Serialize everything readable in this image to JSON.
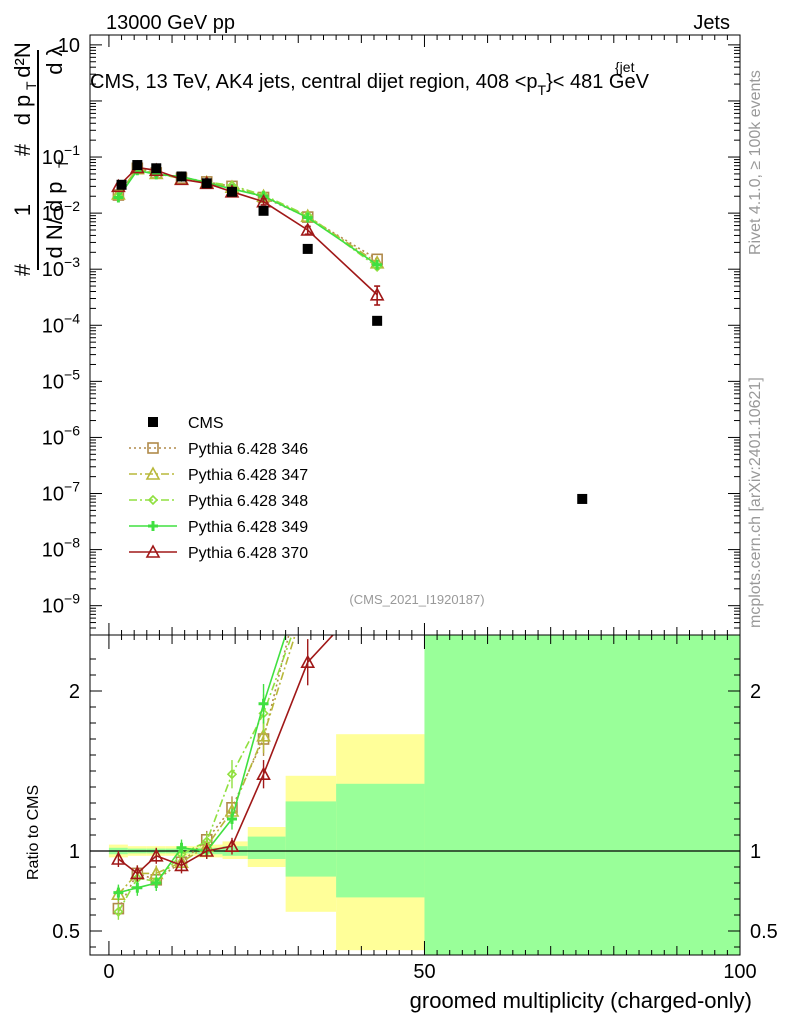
{
  "header": {
    "left": "13000 GeV pp",
    "right": "Jets",
    "title": "CMS, 13 TeV, AK4 jets, central dijet region, 408 <p",
    "title_sup": "{jet",
    "title_sub": "T",
    "title_tail": "}< 481 GeV",
    "watermark": "(CMS_2021_I1920187)",
    "side_top": "Rivet 4.1.0, ≥ 100k events",
    "side_bottom": "mcplots.cern.ch [arXiv:2401.10621]"
  },
  "chart_data": [
    {
      "type": "scatter",
      "panel": "main",
      "xlabel": "groomed multiplicity (charged-only)",
      "ylabel": "1/N dN/dp_T dN/dp_T dλ",
      "xlim": [
        -3,
        100
      ],
      "ylim": [
        3e-10,
        15
      ],
      "yscale": "log",
      "y_ticks": [
        1e-09,
        1e-08,
        1e-07,
        1e-06,
        1e-05,
        0.0001,
        0.001,
        0.01,
        0.1,
        10
      ],
      "y_tick_labels": [
        {
          "base": "10",
          "exp": "−9"
        },
        {
          "base": "10",
          "exp": "−8"
        },
        {
          "base": "10",
          "exp": "−7"
        },
        {
          "base": "10",
          "exp": "−6"
        },
        {
          "base": "10",
          "exp": "−5"
        },
        {
          "base": "10",
          "exp": "−4"
        },
        {
          "base": "10",
          "exp": "−3"
        },
        {
          "base": "10",
          "exp": "−2"
        },
        {
          "base": "10",
          "exp": "−1"
        },
        {
          "base": "10",
          "exp": ""
        }
      ],
      "legend_position": "middle-left",
      "series": [
        {
          "name": "CMS",
          "color": "#000000",
          "marker": "square-filled",
          "line": "none",
          "x": [
            2,
            4.5,
            7.5,
            11.5,
            15.5,
            19.5,
            24.5,
            31.5,
            42.5,
            75
          ],
          "y": [
            0.032,
            0.072,
            0.063,
            0.045,
            0.034,
            0.024,
            0.011,
            0.0023,
            0.00012,
            8e-08
          ]
        },
        {
          "name": "Pythia 6.428 346",
          "color": "#b08a4a",
          "marker": "square-open",
          "line": "dotted",
          "x": [
            1.5,
            4.5,
            7.5,
            11.5,
            15.5,
            19.5,
            24.5,
            31.5,
            42.5
          ],
          "y": [
            0.021,
            0.063,
            0.052,
            0.042,
            0.036,
            0.03,
            0.019,
            0.0085,
            0.0015
          ]
        },
        {
          "name": "Pythia 6.428 347",
          "color": "#b8b83a",
          "marker": "triangle-open",
          "line": "dashdot",
          "x": [
            1.5,
            4.5,
            7.5,
            11.5,
            15.5,
            19.5,
            24.5,
            31.5,
            42.5
          ],
          "y": [
            0.022,
            0.062,
            0.051,
            0.041,
            0.035,
            0.029,
            0.02,
            0.0088,
            0.0013
          ]
        },
        {
          "name": "Pythia 6.428 348",
          "color": "#90e040",
          "marker": "diamond-open",
          "line": "dashdot",
          "x": [
            1.5,
            4.5,
            7.5,
            11.5,
            15.5,
            19.5,
            24.5,
            31.5,
            42.5
          ],
          "y": [
            0.02,
            0.06,
            0.05,
            0.044,
            0.036,
            0.031,
            0.021,
            0.009,
            0.0011
          ]
        },
        {
          "name": "Pythia 6.428 349",
          "color": "#40e040",
          "marker": "plus",
          "line": "solid",
          "x": [
            1.5,
            4.5,
            7.5,
            11.5,
            15.5,
            19.5,
            24.5,
            31.5,
            42.5
          ],
          "y": [
            0.019,
            0.058,
            0.049,
            0.045,
            0.035,
            0.027,
            0.02,
            0.0083,
            0.0012
          ]
        },
        {
          "name": "Pythia 6.428 370",
          "color": "#a01818",
          "marker": "triangle-open",
          "line": "solid",
          "x": [
            1.5,
            4.5,
            7.5,
            11.5,
            15.5,
            19.5,
            24.5,
            31.5,
            42.5
          ],
          "y": [
            0.03,
            0.065,
            0.058,
            0.04,
            0.034,
            0.024,
            0.016,
            0.005,
            0.00035
          ],
          "yerr_low": [
            0,
            0,
            0,
            0,
            0,
            0,
            0.002,
            0.0008,
            0.00012
          ],
          "yerr_high": [
            0,
            0,
            0,
            0,
            0,
            0,
            0.002,
            0.0008,
            0.00015
          ]
        }
      ]
    },
    {
      "type": "line",
      "panel": "ratio",
      "xlabel": "groomed multiplicity (charged-only)",
      "ylabel": "Ratio to CMS",
      "xlim": [
        -3,
        100
      ],
      "ylim": [
        0.35,
        2.35
      ],
      "y_ticks": [
        0.5,
        1,
        2
      ],
      "y_tick_labels": [
        "0.5",
        "1",
        "2"
      ],
      "x_ticks": [
        0,
        50,
        100
      ],
      "x_tick_labels": [
        "0",
        "50",
        "100"
      ],
      "bands": [
        {
          "x0": 0,
          "x1": 3,
          "y0": 0.96,
          "y1": 1.04,
          "y0_in": 0.98,
          "y1_in": 1.02
        },
        {
          "x0": 3,
          "x1": 6,
          "y0": 0.97,
          "y1": 1.03,
          "y0_in": 0.985,
          "y1_in": 1.015
        },
        {
          "x0": 6,
          "x1": 9,
          "y0": 0.97,
          "y1": 1.03,
          "y0_in": 0.985,
          "y1_in": 1.015
        },
        {
          "x0": 9,
          "x1": 14,
          "y0": 0.97,
          "y1": 1.03,
          "y0_in": 0.985,
          "y1_in": 1.015
        },
        {
          "x0": 14,
          "x1": 18,
          "y0": 0.96,
          "y1": 1.04,
          "y0_in": 0.98,
          "y1_in": 1.02
        },
        {
          "x0": 18,
          "x1": 22,
          "y0": 0.95,
          "y1": 1.06,
          "y0_in": 0.97,
          "y1_in": 1.03
        },
        {
          "x0": 22,
          "x1": 28,
          "y0": 0.9,
          "y1": 1.15,
          "y0_in": 0.95,
          "y1_in": 1.09
        },
        {
          "x0": 28,
          "x1": 36,
          "y0": 0.62,
          "y1": 1.47,
          "y0_in": 0.84,
          "y1_in": 1.31
        },
        {
          "x0": 36,
          "x1": 50,
          "y0": 0.38,
          "y1": 1.73,
          "y0_in": 0.71,
          "y1_in": 1.42
        },
        {
          "x0": 50,
          "x1": 100,
          "y0": 0.35,
          "y1": 2.35,
          "y0_in": 0.35,
          "y1_in": 2.35
        }
      ],
      "band_colors": {
        "outer": "#ffff99",
        "inner": "#99ff99"
      },
      "series": [
        {
          "name": "Pythia 6.428 346",
          "color": "#b08a4a",
          "marker": "square-open",
          "line": "dotted",
          "x": [
            1.5,
            4.5,
            7.5,
            11.5,
            15.5,
            19.5,
            24.5,
            28.5
          ],
          "y": [
            0.64,
            0.86,
            0.82,
            0.93,
            1.07,
            1.27,
            1.7,
            2.35
          ]
        },
        {
          "name": "Pythia 6.428 347",
          "color": "#b8b83a",
          "marker": "triangle-open",
          "line": "dashdot",
          "x": [
            1.5,
            4.5,
            7.5,
            11.5,
            15.5,
            19.5,
            24.5,
            29.5
          ],
          "y": [
            0.73,
            0.86,
            0.86,
            0.93,
            1.03,
            1.25,
            1.72,
            2.35
          ]
        },
        {
          "name": "Pythia 6.428 348",
          "color": "#90e040",
          "marker": "diamond-open",
          "line": "dashdot",
          "x": [
            1.5,
            4.5,
            7.5,
            11.5,
            15.5,
            19.5,
            24.5,
            29.0
          ],
          "y": [
            0.62,
            0.83,
            0.81,
            0.98,
            1.06,
            1.48,
            1.86,
            2.35
          ]
        },
        {
          "name": "Pythia 6.428 349",
          "color": "#40e040",
          "marker": "plus",
          "line": "solid",
          "x": [
            1.5,
            4.5,
            7.5,
            11.5,
            15.5,
            19.5,
            24.5,
            28.0
          ],
          "y": [
            0.74,
            0.77,
            0.8,
            1.02,
            1.0,
            1.2,
            1.92,
            2.35
          ]
        },
        {
          "name": "Pythia 6.428 370",
          "color": "#a01818",
          "marker": "triangle-open",
          "line": "solid",
          "x": [
            1.5,
            4.5,
            7.5,
            11.5,
            15.5,
            19.5,
            24.5,
            31.5,
            35.5
          ],
          "y": [
            0.95,
            0.86,
            0.97,
            0.91,
            1.0,
            1.03,
            1.48,
            2.18,
            2.35
          ]
        }
      ]
    }
  ]
}
